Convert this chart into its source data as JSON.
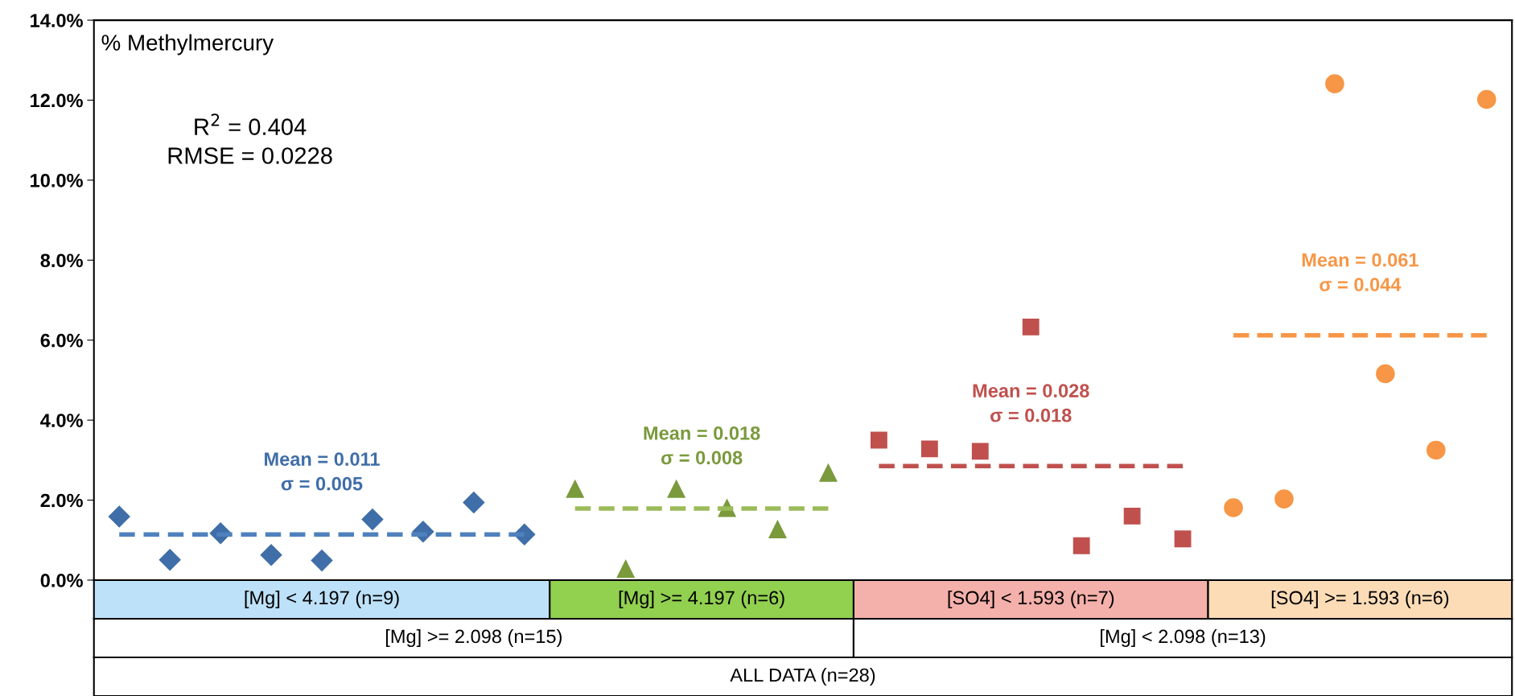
{
  "chart_data": {
    "type": "scatter",
    "title": "% Methylmercury",
    "categories": [
      null,
      null,
      null,
      null,
      null,
      null,
      null,
      null,
      null,
      null,
      null,
      null,
      null,
      null,
      null,
      null,
      null,
      null,
      null,
      null,
      null,
      null,
      null,
      null,
      null,
      null,
      null,
      null
    ],
    "ylim": [
      0,
      14
    ],
    "yticks": [
      {
        "value": 0,
        "label": "0.0%"
      },
      {
        "value": 2,
        "label": "2.0%"
      },
      {
        "value": 4,
        "label": "4.0%"
      },
      {
        "value": 6,
        "label": "6.0%"
      },
      {
        "value": 8,
        "label": "8.0%"
      },
      {
        "value": 10,
        "label": "10.0%"
      },
      {
        "value": 12,
        "label": "12.0%"
      },
      {
        "value": 14,
        "label": "14.0%"
      }
    ],
    "tick_labels": "y",
    "grid": false,
    "legend": false,
    "series": [
      {
        "marker": "diamond",
        "color": "#3f6ea8",
        "values": [
          1.59,
          0.51,
          1.17,
          0.63,
          0.49,
          1.52,
          1.21,
          1.94,
          1.14,
          null,
          null,
          null,
          null,
          null,
          null,
          null,
          null,
          null,
          null,
          null,
          null,
          null,
          null,
          null,
          null,
          null,
          null,
          null
        ]
      },
      {
        "marker": "triangle",
        "color": "#7a9a3c",
        "values": [
          null,
          null,
          null,
          null,
          null,
          null,
          null,
          null,
          null,
          2.28,
          0.28,
          2.28,
          1.8,
          1.27,
          2.68,
          null,
          null,
          null,
          null,
          null,
          null,
          null,
          null,
          null,
          null,
          null,
          null,
          null
        ]
      },
      {
        "marker": "square",
        "color": "#c0504d",
        "values": [
          null,
          null,
          null,
          null,
          null,
          null,
          null,
          null,
          null,
          null,
          null,
          null,
          null,
          null,
          null,
          3.5,
          3.28,
          3.22,
          6.33,
          0.86,
          1.6,
          1.03,
          null,
          null,
          null,
          null,
          null,
          null
        ]
      },
      {
        "marker": "circle",
        "color": "#f79646",
        "values": [
          null,
          null,
          null,
          null,
          null,
          null,
          null,
          null,
          null,
          null,
          null,
          null,
          null,
          null,
          null,
          null,
          null,
          null,
          null,
          null,
          null,
          null,
          1.81,
          2.03,
          12.41,
          5.16,
          3.25,
          12.02
        ]
      },
      {
        "type": "line",
        "line_style": "dashed",
        "color": "#4f81bd",
        "values": [
          1.14,
          1.14,
          1.14,
          1.14,
          1.14,
          1.14,
          1.14,
          1.14,
          1.14,
          null,
          null,
          null,
          null,
          null,
          null,
          null,
          null,
          null,
          null,
          null,
          null,
          null,
          null,
          null,
          null,
          null,
          null,
          null
        ]
      },
      {
        "type": "line",
        "line_style": "dashed",
        "color": "#9bbb59",
        "values": [
          null,
          null,
          null,
          null,
          null,
          null,
          null,
          null,
          null,
          1.79,
          1.79,
          1.79,
          1.79,
          1.79,
          1.79,
          null,
          null,
          null,
          null,
          null,
          null,
          null,
          null,
          null,
          null,
          null,
          null,
          null
        ]
      },
      {
        "type": "line",
        "line_style": "dashed",
        "color": "#c0504d",
        "values": [
          null,
          null,
          null,
          null,
          null,
          null,
          null,
          null,
          null,
          null,
          null,
          null,
          null,
          null,
          null,
          2.85,
          2.85,
          2.85,
          2.85,
          2.85,
          2.85,
          2.85,
          null,
          null,
          null,
          null,
          null,
          null
        ]
      },
      {
        "type": "line",
        "line_style": "dashed",
        "color": "#f79646",
        "values": [
          null,
          null,
          null,
          null,
          null,
          null,
          null,
          null,
          null,
          null,
          null,
          null,
          null,
          null,
          null,
          null,
          null,
          null,
          null,
          null,
          null,
          null,
          6.12,
          6.12,
          6.12,
          6.12,
          6.12,
          6.12
        ]
      }
    ],
    "annotations": [
      {
        "text": "Mean = 0.011\nσ = 0.005",
        "y": 1.14
      },
      {
        "text": "Mean = 0.018\nσ = 0.008",
        "y": 1.79
      },
      {
        "text": "Mean = 0.028\nσ = 0.018",
        "y": 2.85
      },
      {
        "text": "Mean = 0.061\nσ = 0.044",
        "y": 6.12
      },
      "R$^{2}$ = 0.404\nRMSE = 0.0228",
      "[Mg] < 4.197 (n=9)",
      "[Mg] >= 4.197 (n=6)",
      "[SO4] < 1.593 (n=7)",
      "[SO4] >= 1.593 (n=6)",
      "[Mg] >= 2.098 (n=15)",
      "[Mg] < 2.098 (n=13)",
      "ALL DATA (n=28)"
    ]
  }
}
